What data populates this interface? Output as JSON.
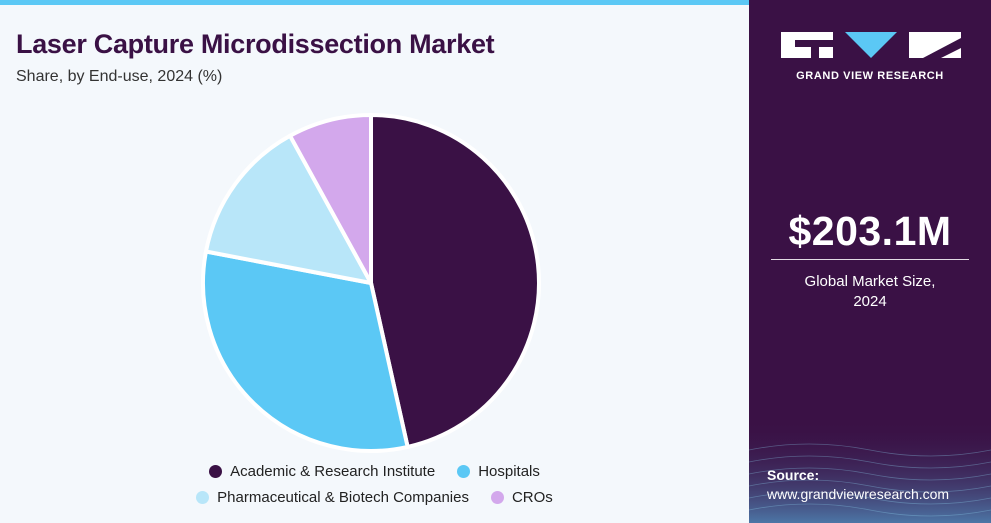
{
  "header": {
    "title": "Laser Capture Microdissection Market",
    "subtitle": "Share, by End-use, 2024 (%)"
  },
  "chart_data": {
    "type": "pie",
    "title": "Laser Capture Microdissection Market",
    "subtitle": "Share, by End-use, 2024 (%)",
    "categories": [
      "Academic & Research Institute",
      "Hospitals",
      "Pharmaceutical & Biotech Companies",
      "CROs"
    ],
    "values": [
      46.5,
      31.5,
      14.0,
      8.0
    ],
    "colors": [
      "#3a1145",
      "#5bc8f5",
      "#b8e6f9",
      "#d3a8ec"
    ],
    "legend_position": "bottom"
  },
  "sidebar": {
    "brand": "GRAND VIEW RESEARCH",
    "market_value": "$203.1M",
    "market_label_line1": "Global Market Size,",
    "market_label_line2": "2024",
    "source_label": "Source:",
    "source_url": "www.grandviewresearch.com"
  },
  "colors": {
    "panel": "#3a1145",
    "accent": "#5bc8f5",
    "background": "#f4f8fc"
  }
}
